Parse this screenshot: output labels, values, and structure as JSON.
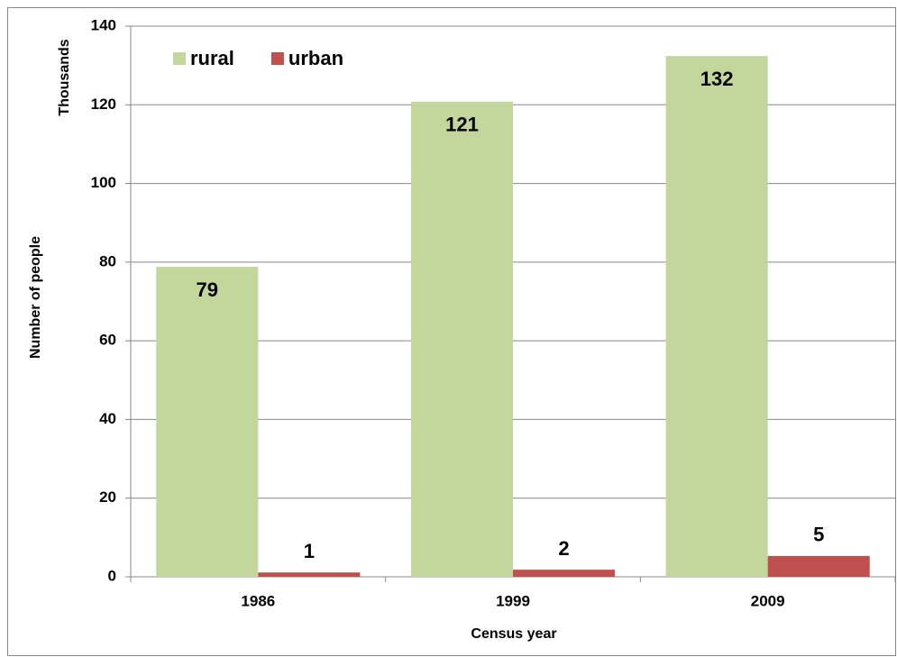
{
  "chart_data": {
    "type": "bar",
    "y_unit_label": "Thousands",
    "x_label": "Census year",
    "y_label": "Number of people",
    "categories": [
      "1986",
      "1999",
      "2009"
    ],
    "series": [
      {
        "name": "rural",
        "color": "#c3d69b",
        "values": [
          78.8,
          120.8,
          132.4
        ],
        "value_labels": [
          "79",
          "121",
          "132"
        ],
        "label_position": "inside"
      },
      {
        "name": "urban",
        "color": "#c0504d",
        "values": [
          1.1,
          1.8,
          5.3
        ],
        "value_labels": [
          "1",
          "2",
          "5"
        ],
        "label_position": "above"
      }
    ],
    "ylim": [
      0,
      140
    ],
    "yticks": [
      0,
      20,
      40,
      60,
      80,
      100,
      120,
      140
    ],
    "grid": true,
    "legend": "top-left"
  }
}
